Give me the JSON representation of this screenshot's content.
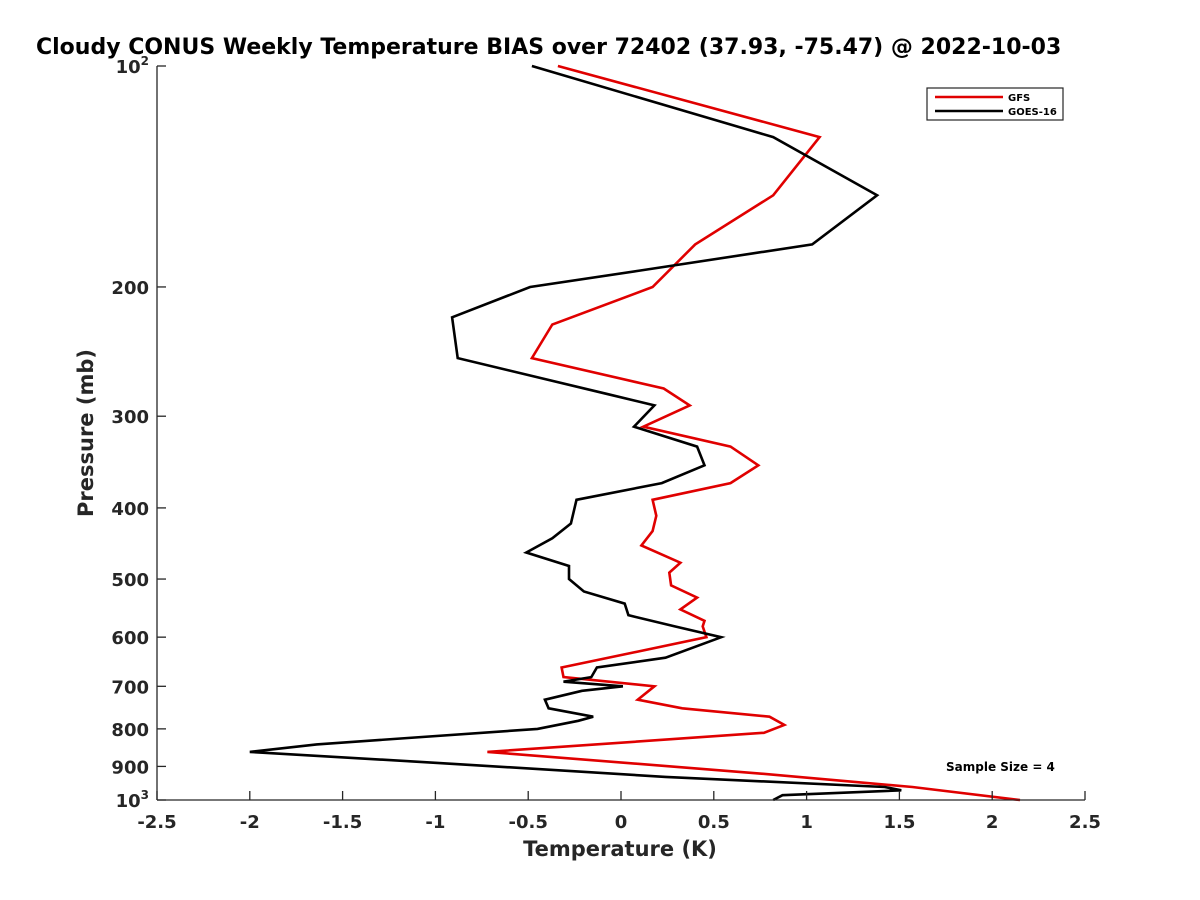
{
  "chart_data": {
    "type": "line",
    "title": "Cloudy CONUS Weekly Temperature BIAS over 72402 (37.93, -75.47) @ 2022-10-03",
    "xlabel": "Temperature (K)",
    "ylabel": "Pressure (mb)",
    "xlim": [
      -2.5,
      2.5
    ],
    "ylim": [
      100,
      1000
    ],
    "y_scale": "log",
    "y_reversed": true,
    "x_ticks": [
      {
        "value": -2.5,
        "label": "-2.5"
      },
      {
        "value": -2,
        "label": "-2"
      },
      {
        "value": -1.5,
        "label": "-1.5"
      },
      {
        "value": -1,
        "label": "-1"
      },
      {
        "value": -0.5,
        "label": "-0.5"
      },
      {
        "value": 0,
        "label": "0"
      },
      {
        "value": 0.5,
        "label": "0.5"
      },
      {
        "value": 1,
        "label": "1"
      },
      {
        "value": 1.5,
        "label": "1.5"
      },
      {
        "value": 2,
        "label": "2"
      },
      {
        "value": 2.5,
        "label": "2.5"
      }
    ],
    "y_ticks": [
      {
        "value": 100,
        "base": "10",
        "exp": "2"
      },
      {
        "value": 200,
        "label": "200"
      },
      {
        "value": 300,
        "label": "300"
      },
      {
        "value": 400,
        "label": "400"
      },
      {
        "value": 500,
        "label": "500"
      },
      {
        "value": 600,
        "label": "600"
      },
      {
        "value": 700,
        "label": "700"
      },
      {
        "value": 800,
        "label": "800"
      },
      {
        "value": 900,
        "label": "900"
      },
      {
        "value": 1000,
        "base": "10",
        "exp": "3"
      }
    ],
    "grid": false,
    "legend_position": "top-right",
    "annotation": "Sample Size = 4",
    "series": [
      {
        "name": "GFS",
        "color": "#e00000",
        "points": [
          [
            -0.34,
            100
          ],
          [
            1.07,
            125
          ],
          [
            0.82,
            150
          ],
          [
            0.4,
            175
          ],
          [
            0.17,
            200
          ],
          [
            -0.37,
            225
          ],
          [
            -0.48,
            250
          ],
          [
            0.23,
            275
          ],
          [
            0.37,
            290
          ],
          [
            0.12,
            310
          ],
          [
            0.59,
            330
          ],
          [
            0.74,
            350
          ],
          [
            0.59,
            370
          ],
          [
            0.17,
            390
          ],
          [
            0.19,
            410
          ],
          [
            0.17,
            430
          ],
          [
            0.11,
            450
          ],
          [
            0.32,
            475
          ],
          [
            0.26,
            490
          ],
          [
            0.27,
            510
          ],
          [
            0.41,
            530
          ],
          [
            0.32,
            550
          ],
          [
            0.45,
            570
          ],
          [
            0.44,
            580
          ],
          [
            0.46,
            600
          ],
          [
            -0.32,
            660
          ],
          [
            -0.31,
            680
          ],
          [
            0.18,
            700
          ],
          [
            0.09,
            730
          ],
          [
            0.33,
            750
          ],
          [
            0.8,
            770
          ],
          [
            0.88,
            790
          ],
          [
            0.77,
            810
          ],
          [
            -0.72,
            860
          ],
          [
            0.74,
            920
          ],
          [
            1.57,
            960
          ],
          [
            2.15,
            1000
          ]
        ]
      },
      {
        "name": "GOES-16",
        "color": "#000000",
        "points": [
          [
            -0.48,
            100
          ],
          [
            0.82,
            125
          ],
          [
            1.38,
            150
          ],
          [
            1.03,
            175
          ],
          [
            0.1,
            190
          ],
          [
            -0.49,
            200
          ],
          [
            -0.91,
            220
          ],
          [
            -0.88,
            250
          ],
          [
            -0.07,
            280
          ],
          [
            0.18,
            290
          ],
          [
            0.07,
            310
          ],
          [
            0.41,
            330
          ],
          [
            0.45,
            350
          ],
          [
            0.22,
            370
          ],
          [
            -0.24,
            390
          ],
          [
            -0.27,
            420
          ],
          [
            -0.37,
            440
          ],
          [
            -0.51,
            460
          ],
          [
            -0.28,
            480
          ],
          [
            -0.28,
            500
          ],
          [
            -0.2,
            520
          ],
          [
            0.02,
            540
          ],
          [
            0.04,
            560
          ],
          [
            0.29,
            580
          ],
          [
            0.54,
            600
          ],
          [
            0.24,
            640
          ],
          [
            -0.13,
            660
          ],
          [
            -0.16,
            680
          ],
          [
            -0.31,
            690
          ],
          [
            0.01,
            700
          ],
          [
            -0.21,
            710
          ],
          [
            -0.41,
            730
          ],
          [
            -0.39,
            750
          ],
          [
            -0.15,
            770
          ],
          [
            -0.23,
            780
          ],
          [
            -0.45,
            800
          ],
          [
            -1.64,
            840
          ],
          [
            -2.0,
            860
          ],
          [
            -0.99,
            890
          ],
          [
            0.24,
            930
          ],
          [
            1.42,
            960
          ],
          [
            1.51,
            970
          ],
          [
            0.87,
            985
          ],
          [
            0.82,
            1000
          ]
        ]
      }
    ]
  }
}
